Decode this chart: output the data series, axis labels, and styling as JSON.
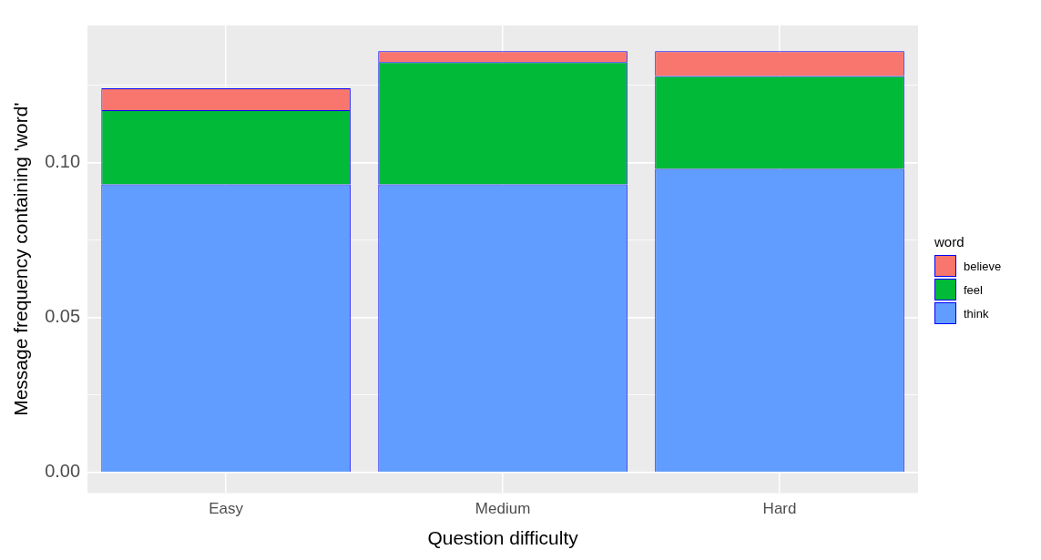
{
  "chart_data": {
    "type": "bar",
    "stacked": true,
    "xlabel": "Question difficulty",
    "ylabel": "Message frequency containing 'word'",
    "legend_title": "word",
    "legend": "right",
    "grid": true,
    "categories": [
      "Easy",
      "Medium",
      "Hard"
    ],
    "series": [
      {
        "name": "think",
        "color": "#619cff",
        "values": [
          0.093,
          0.093,
          0.098
        ]
      },
      {
        "name": "feel",
        "color": "#00ba38",
        "values": [
          0.024,
          0.0395,
          0.03
        ]
      },
      {
        "name": "believe",
        "color": "#f8766d",
        "values": [
          0.007,
          0.0035,
          0.008
        ]
      }
    ],
    "ylim": [
      -0.0066,
      0.1443
    ],
    "yticks": [
      {
        "value": 0,
        "label": "0.00"
      },
      {
        "value": 0.025,
        "label": null
      },
      {
        "value": 0.05,
        "label": "0.05"
      },
      {
        "value": 0.075,
        "label": null
      },
      {
        "value": 0.1,
        "label": "0.10"
      },
      {
        "value": 0.125,
        "label": null
      }
    ]
  }
}
